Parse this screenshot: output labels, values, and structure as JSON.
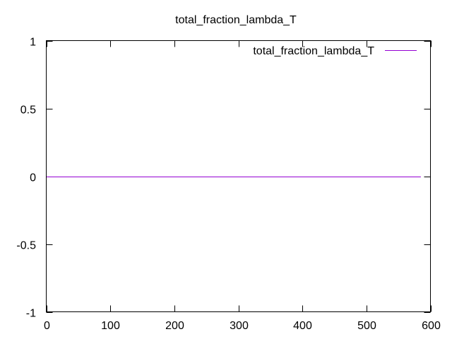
{
  "chart_data": {
    "type": "line",
    "title": "total_fraction_lambda_T",
    "xlabel": "",
    "ylabel": "",
    "xlim": [
      0,
      600
    ],
    "ylim": [
      -1,
      1
    ],
    "x_ticks": [
      0,
      100,
      200,
      300,
      400,
      500,
      600
    ],
    "x_tick_labels": [
      "0",
      "100",
      "200",
      "300",
      "400",
      "500",
      "600"
    ],
    "y_ticks": [
      -1,
      -0.5,
      0,
      0.5,
      1
    ],
    "y_tick_labels": [
      "-1",
      "-0.5",
      "0",
      "0.5",
      "1"
    ],
    "grid": false,
    "legend_position": "top-right",
    "series": [
      {
        "name": "total_fraction_lambda_T",
        "color": "#9400d3",
        "x": [
          0,
          100,
          200,
          300,
          400,
          500,
          585
        ],
        "y": [
          0,
          0,
          0,
          0,
          0,
          0,
          0
        ]
      }
    ]
  }
}
